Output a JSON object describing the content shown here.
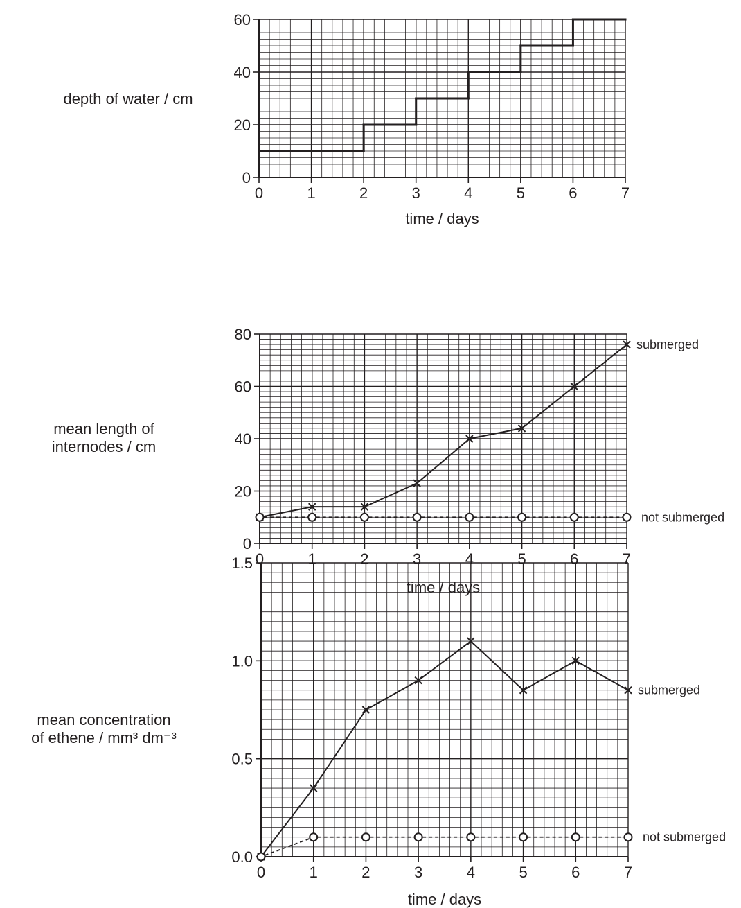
{
  "chart_data": [
    {
      "type": "line",
      "ylabel": "depth of water / cm",
      "xlabel": "time / days",
      "xlim": [
        0,
        7
      ],
      "ylim": [
        0,
        60
      ],
      "x_ticks": [
        "0",
        "1",
        "2",
        "3",
        "4",
        "5",
        "6",
        "7"
      ],
      "y_ticks": [
        "0",
        "20",
        "40",
        "60"
      ],
      "grid": true,
      "line_style": "step",
      "series": [
        {
          "x": [
            0,
            2,
            2,
            3,
            3,
            4,
            4,
            5,
            5,
            6,
            6,
            7
          ],
          "values": [
            10,
            10,
            20,
            20,
            30,
            30,
            40,
            40,
            50,
            50,
            60,
            60
          ]
        }
      ]
    },
    {
      "type": "line",
      "ylabel_lines": [
        "mean length of",
        "internodes / cm"
      ],
      "xlabel": "time / days",
      "xlim": [
        0,
        7
      ],
      "ylim": [
        0,
        80
      ],
      "x_ticks": [
        "0",
        "1",
        "2",
        "3",
        "4",
        "5",
        "6",
        "7"
      ],
      "y_ticks": [
        "0",
        "20",
        "40",
        "60",
        "80"
      ],
      "grid": true,
      "series": [
        {
          "name": "submerged",
          "marker": "cross",
          "line": "solid",
          "x": [
            0,
            1,
            2,
            3,
            4,
            5,
            6,
            7
          ],
          "values": [
            10,
            14,
            14,
            23,
            40,
            44,
            60,
            76
          ]
        },
        {
          "name": "not submerged",
          "marker": "circle",
          "line": "dashed",
          "x": [
            0,
            1,
            2,
            3,
            4,
            5,
            6,
            7
          ],
          "values": [
            10,
            10,
            10,
            10,
            10,
            10,
            10,
            10
          ]
        }
      ]
    },
    {
      "type": "line",
      "ylabel_lines": [
        "mean concentration",
        "of ethene / mm³ dm⁻³"
      ],
      "xlabel": "time / days",
      "xlim": [
        0,
        7
      ],
      "ylim": [
        0,
        1.5
      ],
      "x_ticks": [
        "0",
        "1",
        "2",
        "3",
        "4",
        "5",
        "6",
        "7"
      ],
      "y_ticks": [
        "0.0",
        "0.5",
        "1.0",
        "1.5"
      ],
      "grid": true,
      "series": [
        {
          "name": "submerged",
          "marker": "cross",
          "line": "solid",
          "x": [
            0,
            1,
            2,
            3,
            4,
            5,
            6,
            7
          ],
          "values": [
            0,
            0.35,
            0.75,
            0.9,
            1.1,
            0.85,
            1.0,
            0.85
          ]
        },
        {
          "name": "not submerged",
          "marker": "circle",
          "line": "dashed",
          "x": [
            0,
            1,
            2,
            3,
            4,
            5,
            6,
            7
          ],
          "values": [
            0,
            0.1,
            0.1,
            0.1,
            0.1,
            0.1,
            0.1,
            0.1
          ]
        }
      ]
    }
  ]
}
